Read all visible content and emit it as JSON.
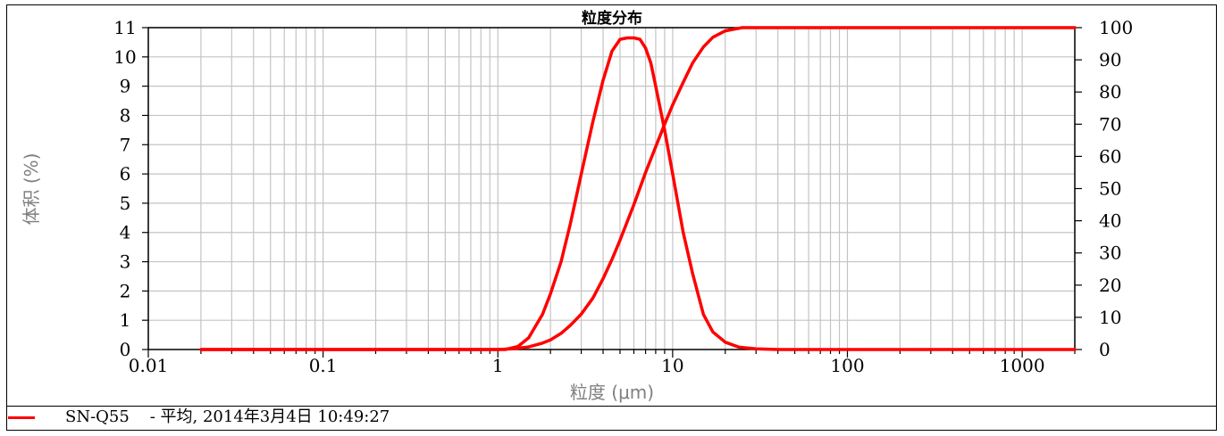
{
  "chart_data": {
    "type": "line",
    "title": "粒度分布",
    "xlabel": "粒度 (μm)",
    "ylabel": "体积 (%)",
    "x_scale": "log",
    "xlim": [
      0.01,
      2000
    ],
    "ylim": [
      0,
      11
    ],
    "y2lim": [
      0,
      100
    ],
    "grid": true,
    "x_ticks": [
      {
        "value": 0.01,
        "label": "0.01"
      },
      {
        "value": 0.1,
        "label": "0.1"
      },
      {
        "value": 1,
        "label": "1"
      },
      {
        "value": 10,
        "label": "10"
      },
      {
        "value": 100,
        "label": "100"
      },
      {
        "value": 1000,
        "label": "1000"
      }
    ],
    "y_ticks": [
      "0",
      "1",
      "2",
      "3",
      "4",
      "5",
      "6",
      "7",
      "8",
      "9",
      "10",
      "11"
    ],
    "y2_ticks": [
      "0",
      "10",
      "20",
      "30",
      "40",
      "50",
      "60",
      "70",
      "80",
      "90",
      "100"
    ],
    "series": [
      {
        "axis": "left",
        "color": "#ff0000",
        "x": [
          0.02,
          0.5,
          1.1,
          1.3,
          1.5,
          1.8,
          2.0,
          2.3,
          2.6,
          3.0,
          3.5,
          4.0,
          4.5,
          5.0,
          5.5,
          6.0,
          6.5,
          7.0,
          7.5,
          8.0,
          9.0,
          10,
          11.5,
          13,
          15,
          17,
          20,
          24,
          30,
          40,
          2000
        ],
        "y": [
          0,
          0,
          0,
          0.1,
          0.4,
          1.2,
          1.9,
          3.0,
          4.3,
          6.0,
          7.8,
          9.2,
          10.2,
          10.6,
          10.65,
          10.65,
          10.6,
          10.3,
          9.8,
          9.0,
          7.5,
          6.0,
          4.0,
          2.6,
          1.2,
          0.6,
          0.25,
          0.08,
          0.02,
          0,
          0
        ]
      },
      {
        "axis": "right",
        "color": "#ff0000",
        "x": [
          0.02,
          0.5,
          1.0,
          1.2,
          1.5,
          1.8,
          2.0,
          2.3,
          2.6,
          3.0,
          3.5,
          4.0,
          4.5,
          5.0,
          6.0,
          7.0,
          8.0,
          9.0,
          10,
          11.5,
          13,
          15,
          17,
          20,
          25,
          2000
        ],
        "y": [
          0,
          0,
          0,
          0.2,
          0.8,
          2.0,
          3.0,
          5.0,
          7.5,
          11,
          16,
          22,
          28,
          34,
          45,
          55,
          63,
          70,
          76,
          83,
          89,
          94,
          97,
          99,
          100,
          100
        ]
      }
    ]
  },
  "legend": {
    "text": "SN-Q55    - 平均, 2014年3月4日 10:49:27"
  }
}
